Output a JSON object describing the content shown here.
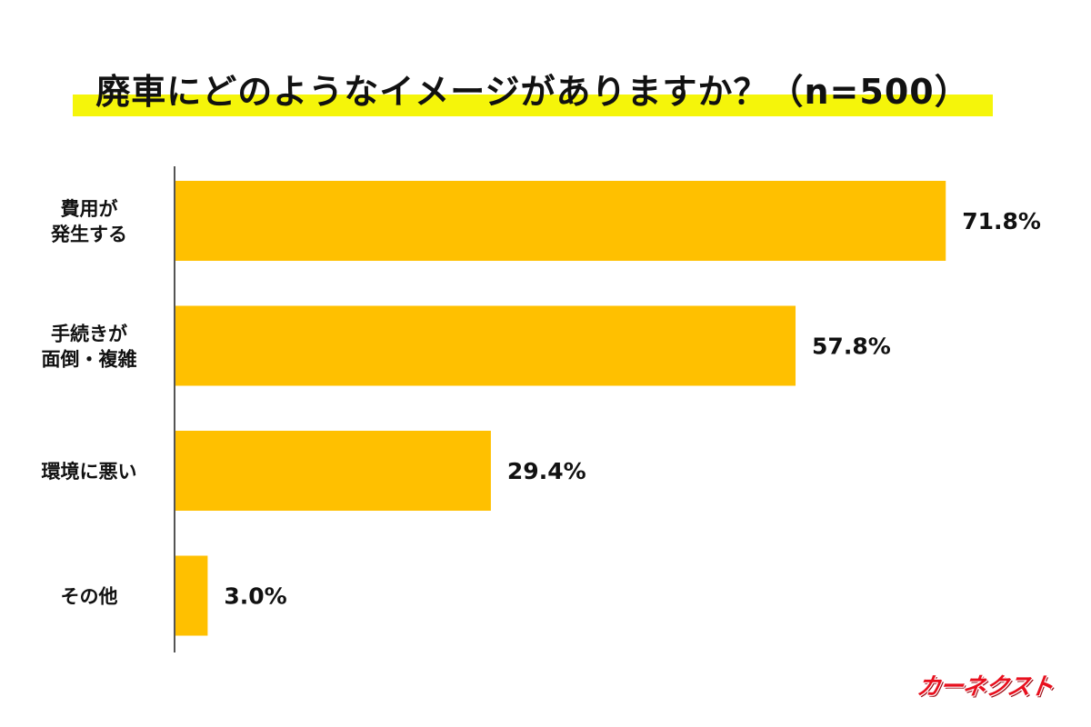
{
  "title": "廃車にどのようなイメージがありますか？（n=500）",
  "brand": "カーネクスト",
  "colors": {
    "bar": "#ffc000",
    "highlight": "#f5f50a",
    "axis": "#555555",
    "brand": "#e8101e"
  },
  "chart_data": {
    "type": "bar",
    "orientation": "horizontal",
    "categories": [
      [
        "費用が",
        "発生する"
      ],
      [
        "手続きが",
        "面倒・複雑"
      ],
      [
        "環境に悪い"
      ],
      [
        "その他"
      ]
    ],
    "values": [
      71.8,
      57.8,
      29.4,
      3.0
    ],
    "value_labels": [
      "71.8%",
      "57.8%",
      "29.4%",
      "3.0%"
    ],
    "unit": "%",
    "xlim": [
      0,
      100
    ],
    "grid": false,
    "legend": "none"
  }
}
